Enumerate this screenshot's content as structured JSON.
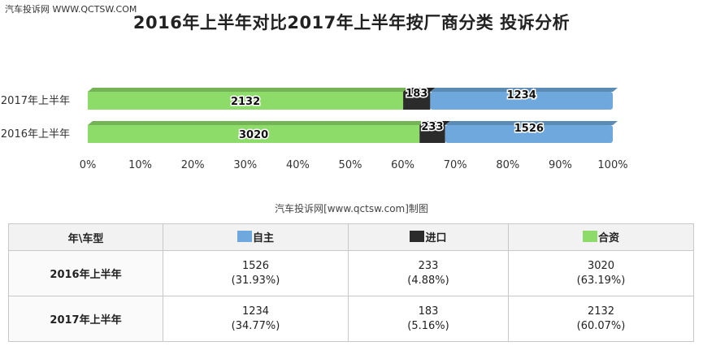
{
  "watermark": "汽车投诉网  WWW.QCTSW.COM",
  "title": "2016年上半年对比2017年上半年按厂商分类 投诉分析",
  "chart_data": {
    "type": "bar",
    "orientation": "horizontal",
    "stacked": "percent",
    "categories": [
      "2017年上半年",
      "2016年上半年"
    ],
    "series": [
      {
        "name": "合资",
        "values": [
          2132,
          3020
        ],
        "color": "#8ddc6a"
      },
      {
        "name": "进口",
        "values": [
          183,
          233
        ],
        "color": "#2b2b2b"
      },
      {
        "name": "自主",
        "values": [
          1234,
          1526
        ],
        "color": "#6fa8dc"
      }
    ],
    "x_ticks": [
      "0%",
      "10%",
      "20%",
      "30%",
      "40%",
      "50%",
      "60%",
      "70%",
      "80%",
      "90%",
      "100%"
    ],
    "xlim": [
      0,
      100
    ],
    "grid": false,
    "legend": "none"
  },
  "credit": "汽车投诉网[www.qctsw.com]制图",
  "table": {
    "corner": "年\\车型",
    "columns": [
      {
        "label": "自主",
        "color": "#6fa8dc"
      },
      {
        "label": "进口",
        "color": "#2b2b2b"
      },
      {
        "label": "合资",
        "color": "#8ddc6a"
      }
    ],
    "rows": [
      {
        "label": "2016年上半年",
        "cells": [
          {
            "value": "1526",
            "pct": "(31.93%)"
          },
          {
            "value": "233",
            "pct": "(4.88%)"
          },
          {
            "value": "3020",
            "pct": "(63.19%)"
          }
        ]
      },
      {
        "label": "2017年上半年",
        "cells": [
          {
            "value": "1234",
            "pct": "(34.77%)"
          },
          {
            "value": "183",
            "pct": "(5.16%)"
          },
          {
            "value": "2132",
            "pct": "(60.07%)"
          }
        ]
      }
    ]
  }
}
